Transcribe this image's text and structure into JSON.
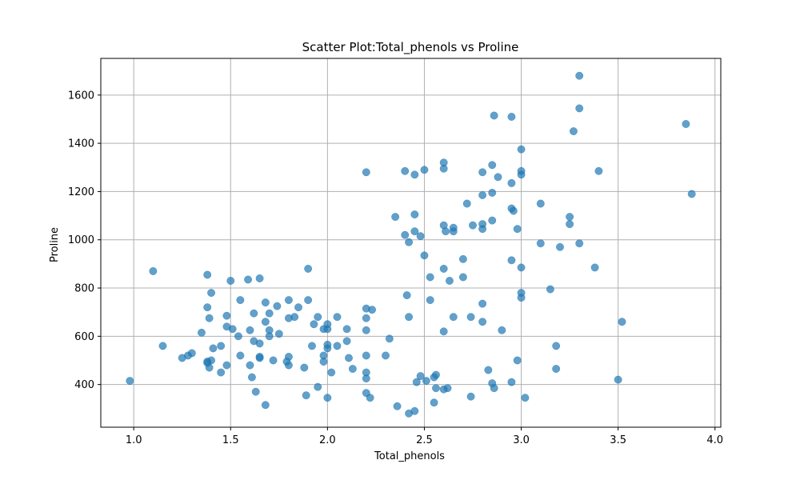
{
  "chart_data": {
    "type": "scatter",
    "title": "Scatter Plot:Total_phenols vs Proline",
    "xlabel": "Total_phenols",
    "ylabel": "Proline",
    "xlim": [
      0.83,
      4.03
    ],
    "ylim": [
      223,
      1752
    ],
    "xticks": [
      1.0,
      1.5,
      2.0,
      2.5,
      3.0,
      3.5,
      4.0
    ],
    "xtick_labels": [
      "1.0",
      "1.5",
      "2.0",
      "2.5",
      "3.0",
      "3.5",
      "4.0"
    ],
    "yticks": [
      400,
      600,
      800,
      1000,
      1200,
      1400,
      1600
    ],
    "ytick_labels": [
      "400",
      "600",
      "800",
      "1000",
      "1200",
      "1400",
      "1600"
    ],
    "grid": true,
    "marker_color": "#1f77b4",
    "marker_alpha": 0.7,
    "points": [
      [
        0.98,
        415
      ],
      [
        1.1,
        870
      ],
      [
        1.15,
        560
      ],
      [
        1.25,
        510
      ],
      [
        1.28,
        520
      ],
      [
        1.3,
        530
      ],
      [
        1.35,
        615
      ],
      [
        1.38,
        855
      ],
      [
        1.38,
        720
      ],
      [
        1.38,
        495
      ],
      [
        1.38,
        490
      ],
      [
        1.39,
        675
      ],
      [
        1.4,
        780
      ],
      [
        1.39,
        470
      ],
      [
        1.4,
        500
      ],
      [
        1.41,
        550
      ],
      [
        1.45,
        450
      ],
      [
        1.45,
        560
      ],
      [
        1.48,
        685
      ],
      [
        1.48,
        640
      ],
      [
        1.48,
        480
      ],
      [
        1.5,
        830
      ],
      [
        1.51,
        630
      ],
      [
        1.54,
        600
      ],
      [
        1.55,
        750
      ],
      [
        1.55,
        520
      ],
      [
        1.59,
        835
      ],
      [
        1.6,
        625
      ],
      [
        1.6,
        480
      ],
      [
        1.61,
        430
      ],
      [
        1.62,
        695
      ],
      [
        1.62,
        580
      ],
      [
        1.63,
        370
      ],
      [
        1.65,
        840
      ],
      [
        1.65,
        570
      ],
      [
        1.65,
        515
      ],
      [
        1.65,
        510
      ],
      [
        1.68,
        740
      ],
      [
        1.68,
        660
      ],
      [
        1.68,
        315
      ],
      [
        1.7,
        695
      ],
      [
        1.7,
        625
      ],
      [
        1.7,
        600
      ],
      [
        1.72,
        500
      ],
      [
        1.74,
        725
      ],
      [
        1.75,
        610
      ],
      [
        1.79,
        495
      ],
      [
        1.8,
        750
      ],
      [
        1.8,
        675
      ],
      [
        1.8,
        515
      ],
      [
        1.8,
        480
      ],
      [
        1.83,
        680
      ],
      [
        1.85,
        720
      ],
      [
        1.88,
        470
      ],
      [
        1.89,
        355
      ],
      [
        1.9,
        880
      ],
      [
        1.9,
        750
      ],
      [
        1.92,
        560
      ],
      [
        1.93,
        650
      ],
      [
        1.95,
        680
      ],
      [
        1.95,
        390
      ],
      [
        1.98,
        630
      ],
      [
        1.98,
        520
      ],
      [
        1.98,
        495
      ],
      [
        2.0,
        650
      ],
      [
        2.0,
        630
      ],
      [
        2.0,
        565
      ],
      [
        2.0,
        550
      ],
      [
        2.0,
        345
      ],
      [
        2.02,
        450
      ],
      [
        2.05,
        680
      ],
      [
        2.05,
        560
      ],
      [
        2.1,
        630
      ],
      [
        2.1,
        580
      ],
      [
        2.11,
        510
      ],
      [
        2.13,
        465
      ],
      [
        2.2,
        1280
      ],
      [
        2.2,
        715
      ],
      [
        2.2,
        675
      ],
      [
        2.2,
        625
      ],
      [
        2.2,
        520
      ],
      [
        2.2,
        450
      ],
      [
        2.2,
        425
      ],
      [
        2.2,
        365
      ],
      [
        2.22,
        345
      ],
      [
        2.23,
        710
      ],
      [
        2.3,
        520
      ],
      [
        2.32,
        590
      ],
      [
        2.35,
        1095
      ],
      [
        2.36,
        310
      ],
      [
        2.4,
        1285
      ],
      [
        2.4,
        1020
      ],
      [
        2.41,
        770
      ],
      [
        2.42,
        990
      ],
      [
        2.42,
        680
      ],
      [
        2.42,
        280
      ],
      [
        2.45,
        1270
      ],
      [
        2.45,
        1105
      ],
      [
        2.45,
        1035
      ],
      [
        2.45,
        290
      ],
      [
        2.46,
        410
      ],
      [
        2.48,
        1015
      ],
      [
        2.48,
        435
      ],
      [
        2.5,
        1290
      ],
      [
        2.5,
        935
      ],
      [
        2.51,
        415
      ],
      [
        2.53,
        845
      ],
      [
        2.53,
        750
      ],
      [
        2.55,
        430
      ],
      [
        2.55,
        325
      ],
      [
        2.56,
        440
      ],
      [
        2.56,
        385
      ],
      [
        2.6,
        1320
      ],
      [
        2.6,
        1295
      ],
      [
        2.6,
        1060
      ],
      [
        2.6,
        880
      ],
      [
        2.6,
        620
      ],
      [
        2.6,
        380
      ],
      [
        2.61,
        1035
      ],
      [
        2.62,
        385
      ],
      [
        2.63,
        830
      ],
      [
        2.65,
        1050
      ],
      [
        2.65,
        1035
      ],
      [
        2.65,
        680
      ],
      [
        2.7,
        920
      ],
      [
        2.7,
        845
      ],
      [
        2.72,
        1150
      ],
      [
        2.74,
        680
      ],
      [
        2.74,
        350
      ],
      [
        2.75,
        1060
      ],
      [
        2.8,
        1280
      ],
      [
        2.8,
        1185
      ],
      [
        2.8,
        1065
      ],
      [
        2.8,
        1045
      ],
      [
        2.8,
        735
      ],
      [
        2.8,
        660
      ],
      [
        2.83,
        460
      ],
      [
        2.85,
        1310
      ],
      [
        2.85,
        1195
      ],
      [
        2.85,
        1080
      ],
      [
        2.85,
        405
      ],
      [
        2.86,
        1515
      ],
      [
        2.86,
        385
      ],
      [
        2.88,
        1260
      ],
      [
        2.9,
        625
      ],
      [
        2.95,
        1510
      ],
      [
        2.95,
        1235
      ],
      [
        2.95,
        1130
      ],
      [
        2.95,
        915
      ],
      [
        2.95,
        410
      ],
      [
        2.96,
        1120
      ],
      [
        2.98,
        1045
      ],
      [
        2.98,
        500
      ],
      [
        3.0,
        1375
      ],
      [
        3.0,
        1285
      ],
      [
        3.0,
        1270
      ],
      [
        3.0,
        885
      ],
      [
        3.0,
        780
      ],
      [
        3.0,
        760
      ],
      [
        3.02,
        345
      ],
      [
        3.1,
        1150
      ],
      [
        3.1,
        985
      ],
      [
        3.15,
        795
      ],
      [
        3.18,
        560
      ],
      [
        3.18,
        465
      ],
      [
        3.2,
        970
      ],
      [
        3.25,
        1095
      ],
      [
        3.25,
        1065
      ],
      [
        3.27,
        1450
      ],
      [
        3.3,
        1680
      ],
      [
        3.3,
        1545
      ],
      [
        3.3,
        985
      ],
      [
        3.38,
        885
      ],
      [
        3.4,
        1285
      ],
      [
        3.5,
        420
      ],
      [
        3.52,
        660
      ],
      [
        3.85,
        1480
      ],
      [
        3.88,
        1190
      ]
    ]
  }
}
